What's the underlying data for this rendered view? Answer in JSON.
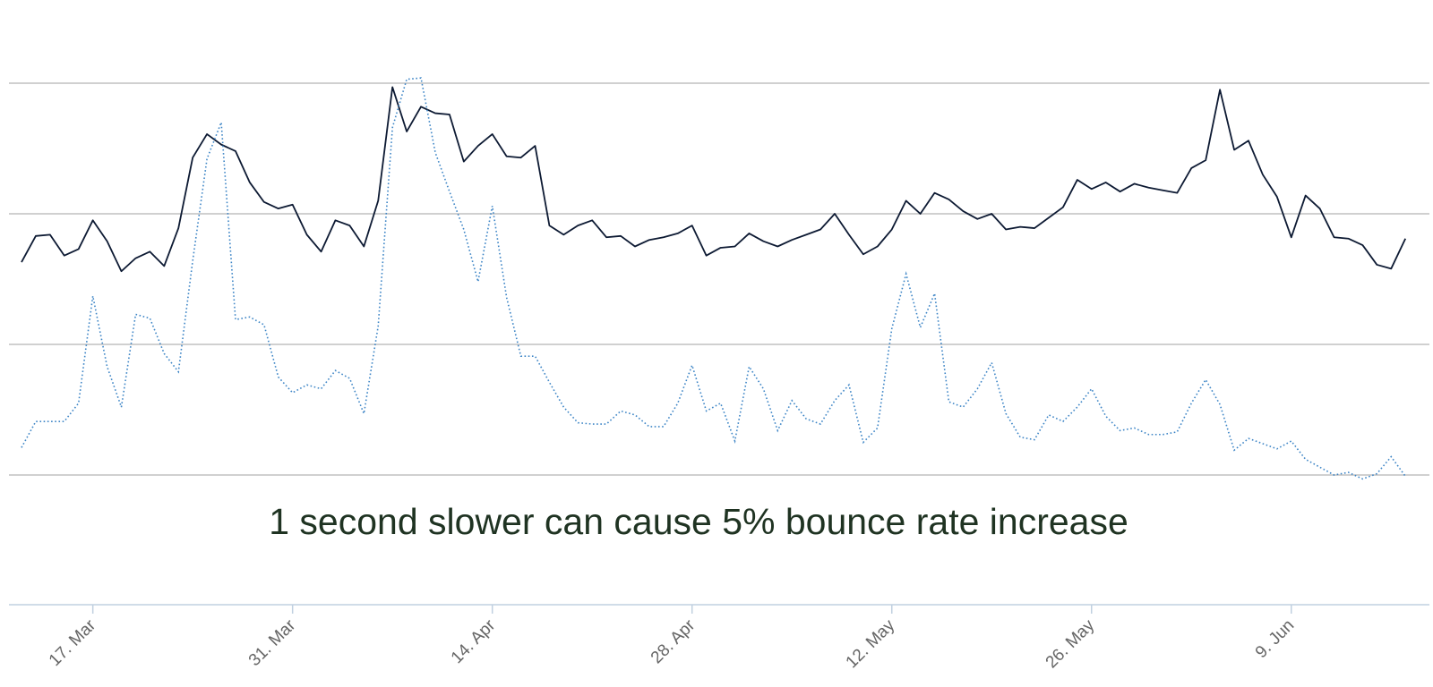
{
  "chart_data": {
    "type": "line",
    "x_start": "2014-03-12",
    "x_step_days": 1,
    "x_ticks": [
      "2014-03-17",
      "2014-03-31",
      "2014-04-14",
      "2014-04-28",
      "2014-05-12",
      "2014-05-26",
      "2014-06-09"
    ],
    "x_tick_labels": [
      "17. Mar",
      "31. Mar",
      "14. Apr",
      "28. Apr",
      "12. May",
      "26. May",
      "9. Jun"
    ],
    "ylim": [
      0,
      3
    ],
    "y_gridlines": [
      0,
      1,
      2,
      3
    ],
    "grid": true,
    "legend": "none",
    "annotation": "1 second slower can cause 5% bounce rate increase",
    "series": [
      {
        "color": "#0d1a33",
        "style": "solid",
        "values": [
          1.63,
          1.83,
          1.84,
          1.68,
          1.73,
          1.95,
          1.79,
          1.56,
          1.66,
          1.71,
          1.6,
          1.89,
          2.43,
          2.61,
          2.53,
          2.48,
          2.24,
          2.09,
          2.04,
          2.07,
          1.84,
          1.71,
          1.95,
          1.91,
          1.75,
          2.1,
          2.97,
          2.63,
          2.82,
          2.77,
          2.76,
          2.4,
          2.52,
          2.61,
          2.44,
          2.43,
          2.52,
          1.91,
          1.84,
          1.91,
          1.95,
          1.82,
          1.83,
          1.75,
          1.8,
          1.82,
          1.85,
          1.91,
          1.68,
          1.74,
          1.75,
          1.85,
          1.79,
          1.75,
          1.8,
          1.84,
          1.88,
          2.0,
          1.84,
          1.69,
          1.75,
          1.88,
          2.1,
          2.0,
          2.16,
          2.11,
          2.02,
          1.96,
          2.0,
          1.88,
          1.9,
          1.89,
          1.97,
          2.05,
          2.26,
          2.19,
          2.24,
          2.17,
          2.23,
          2.2,
          2.18,
          2.16,
          2.35,
          2.41,
          2.95,
          2.49,
          2.56,
          2.3,
          2.13,
          1.82,
          2.14,
          2.04,
          1.82,
          1.81,
          1.76,
          1.61,
          1.58,
          1.81
        ]
      },
      {
        "color": "#3d85c6",
        "style": "dotted",
        "values": [
          0.21,
          0.41,
          0.41,
          0.41,
          0.55,
          1.37,
          0.83,
          0.52,
          1.23,
          1.2,
          0.93,
          0.79,
          1.64,
          2.42,
          2.7,
          1.19,
          1.21,
          1.15,
          0.75,
          0.63,
          0.69,
          0.66,
          0.8,
          0.74,
          0.47,
          1.14,
          2.66,
          3.03,
          3.04,
          2.47,
          2.17,
          1.88,
          1.48,
          2.06,
          1.36,
          0.91,
          0.91,
          0.71,
          0.52,
          0.4,
          0.39,
          0.39,
          0.49,
          0.46,
          0.37,
          0.37,
          0.55,
          0.84,
          0.49,
          0.55,
          0.26,
          0.83,
          0.66,
          0.34,
          0.57,
          0.43,
          0.39,
          0.57,
          0.69,
          0.25,
          0.36,
          1.12,
          1.54,
          1.13,
          1.39,
          0.56,
          0.52,
          0.66,
          0.86,
          0.47,
          0.29,
          0.27,
          0.46,
          0.41,
          0.52,
          0.66,
          0.45,
          0.34,
          0.36,
          0.31,
          0.31,
          0.33,
          0.55,
          0.73,
          0.54,
          0.19,
          0.28,
          0.24,
          0.2,
          0.26,
          0.12,
          0.06,
          0.0,
          0.02,
          -0.03,
          0.01,
          0.14,
          -0.01
        ]
      }
    ]
  }
}
